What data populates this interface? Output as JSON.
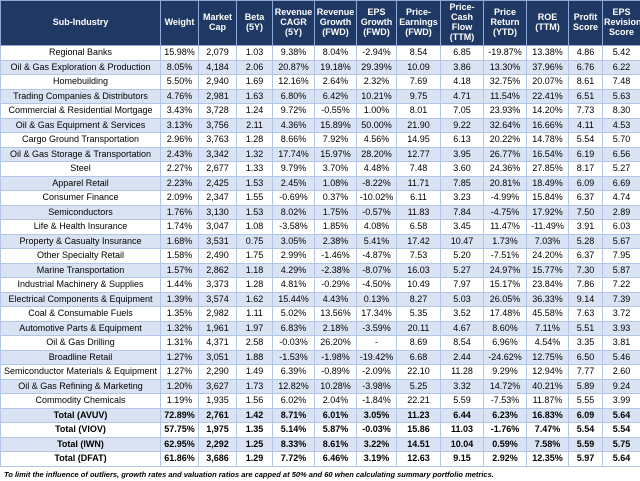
{
  "table": {
    "header": [
      "Sub-Industry",
      "Weight",
      "Market Cap",
      "Beta (5Y)",
      "Revenue CAGR (5Y)",
      "Revenue Growth (FWD)",
      "EPS Growth (FWD)",
      "Price-Earnings (FWD)",
      "Price-Cash Flow (TTM)",
      "Price Return (YTD)",
      "ROE (TTM)",
      "Profit Score",
      "EPS Revision Score"
    ],
    "rows": [
      [
        "Regional Banks",
        "15.98%",
        "2,079",
        "1.03",
        "9.38%",
        "8.04%",
        "-2.94%",
        "8.54",
        "6.85",
        "-19.87%",
        "13.38%",
        "4.86",
        "5.42"
      ],
      [
        "Oil & Gas Exploration & Production",
        "8.05%",
        "4,184",
        "2.06",
        "20.87%",
        "19.18%",
        "29.39%",
        "10.09",
        "3.86",
        "13.30%",
        "37.96%",
        "6.76",
        "6.22"
      ],
      [
        "Homebuilding",
        "5.50%",
        "2,940",
        "1.69",
        "12.16%",
        "2.64%",
        "2.32%",
        "7.69",
        "4.18",
        "32.75%",
        "20.07%",
        "8.61",
        "7.48"
      ],
      [
        "Trading Companies & Distributors",
        "4.76%",
        "2,981",
        "1.63",
        "6.80%",
        "6.42%",
        "10.21%",
        "9.75",
        "4.71",
        "11.54%",
        "22.41%",
        "6.51",
        "5.63"
      ],
      [
        "Commercial & Residential Mortgage",
        "3.43%",
        "3,728",
        "1.24",
        "9.72%",
        "-0.55%",
        "1.00%",
        "8.01",
        "7.05",
        "23.93%",
        "14.20%",
        "7.73",
        "8.30"
      ],
      [
        "Oil & Gas Equipment & Services",
        "3.13%",
        "3,756",
        "2.11",
        "4.36%",
        "15.89%",
        "50.00%",
        "21.90",
        "9.22",
        "32.64%",
        "16.66%",
        "4.11",
        "4.53"
      ],
      [
        "Cargo Ground Transportation",
        "2.96%",
        "3,763",
        "1.28",
        "8.66%",
        "7.92%",
        "4.56%",
        "14.95",
        "6.13",
        "20.22%",
        "14.78%",
        "5.54",
        "5.70"
      ],
      [
        "Oil & Gas Storage & Transportation",
        "2.43%",
        "3,342",
        "1.32",
        "17.74%",
        "15.97%",
        "28.20%",
        "12.77",
        "3.95",
        "26.77%",
        "16.54%",
        "6.19",
        "6.56"
      ],
      [
        "Steel",
        "2.27%",
        "2,677",
        "1.33",
        "9.79%",
        "3.70%",
        "4.48%",
        "7.48",
        "3.60",
        "24.36%",
        "27.85%",
        "8.17",
        "5.27"
      ],
      [
        "Apparel Retail",
        "2.23%",
        "2,425",
        "1.53",
        "2.45%",
        "1.08%",
        "-8.22%",
        "11.71",
        "7.85",
        "20.81%",
        "18.49%",
        "6.09",
        "6.69"
      ],
      [
        "Consumer Finance",
        "2.09%",
        "2,347",
        "1.55",
        "-0.69%",
        "0.37%",
        "-10.02%",
        "6.11",
        "3.23",
        "-4.99%",
        "15.84%",
        "6.37",
        "4.74"
      ],
      [
        "Semiconductors",
        "1.76%",
        "3,130",
        "1.53",
        "8.02%",
        "1.75%",
        "-0.57%",
        "11.83",
        "7.84",
        "-4.75%",
        "17.92%",
        "7.50",
        "2.89"
      ],
      [
        "Life & Health Insurance",
        "1.74%",
        "3,047",
        "1.08",
        "-3.58%",
        "1.85%",
        "4.08%",
        "6.58",
        "3.45",
        "11.47%",
        "-11.49%",
        "3.91",
        "6.03"
      ],
      [
        "Property & Casualty Insurance",
        "1.68%",
        "3,531",
        "0.75",
        "3.05%",
        "2.38%",
        "5.41%",
        "17.42",
        "10.47",
        "1.73%",
        "7.03%",
        "5.28",
        "5.67"
      ],
      [
        "Other Specialty Retail",
        "1.58%",
        "2,490",
        "1.75",
        "2.99%",
        "-1.46%",
        "-4.87%",
        "7.53",
        "5.20",
        "-7.51%",
        "24.20%",
        "6.37",
        "7.95"
      ],
      [
        "Marine Transportation",
        "1.57%",
        "2,862",
        "1.18",
        "4.29%",
        "-2.38%",
        "-8.07%",
        "16.03",
        "5.27",
        "24.97%",
        "15.77%",
        "7.30",
        "5.87"
      ],
      [
        "Industrial Machinery & Supplies",
        "1.44%",
        "3,373",
        "1.28",
        "4.81%",
        "-0.29%",
        "-4.50%",
        "10.49",
        "7.97",
        "15.17%",
        "23.84%",
        "7.86",
        "7.22"
      ],
      [
        "Electrical Components & Equipment",
        "1.39%",
        "3,574",
        "1.62",
        "15.44%",
        "4.43%",
        "0.13%",
        "8.27",
        "5.03",
        "26.05%",
        "36.33%",
        "9.14",
        "7.39"
      ],
      [
        "Coal & Consumable Fuels",
        "1.35%",
        "2,982",
        "1.11",
        "5.02%",
        "13.56%",
        "17.34%",
        "5.35",
        "3.52",
        "17.48%",
        "45.58%",
        "7.63",
        "3.72"
      ],
      [
        "Automotive Parts & Equipment",
        "1.32%",
        "1,961",
        "1.97",
        "6.83%",
        "2.18%",
        "-3.59%",
        "20.11",
        "4.67",
        "8.60%",
        "7.11%",
        "5.51",
        "3.93"
      ],
      [
        "Oil & Gas Drilling",
        "1.31%",
        "4,371",
        "2.58",
        "-0.03%",
        "26.20%",
        "-",
        "8.69",
        "8.54",
        "6.96%",
        "4.54%",
        "3.35",
        "3.81"
      ],
      [
        "Broadline Retail",
        "1.27%",
        "3,051",
        "1.88",
        "-1.53%",
        "-1.98%",
        "-19.42%",
        "6.68",
        "2.44",
        "-24.62%",
        "12.75%",
        "6.50",
        "5.46"
      ],
      [
        "Semiconductor Materials & Equipment",
        "1.27%",
        "2,290",
        "1.49",
        "6.39%",
        "-0.89%",
        "-2.09%",
        "22.10",
        "11.28",
        "9.29%",
        "12.94%",
        "7.77",
        "2.60"
      ],
      [
        "Oil & Gas Refining & Marketing",
        "1.20%",
        "3,627",
        "1.73",
        "12.82%",
        "10.28%",
        "-3.98%",
        "5.25",
        "3.32",
        "14.72%",
        "40.21%",
        "5.89",
        "9.24"
      ],
      [
        "Commodity Chemicals",
        "1.19%",
        "1,935",
        "1.56",
        "6.02%",
        "2.04%",
        "-1.84%",
        "22.21",
        "5.59",
        "-7.53%",
        "11.87%",
        "5.55",
        "3.99"
      ]
    ],
    "totals": [
      [
        "Total (AVUV)",
        "72.89%",
        "2,761",
        "1.42",
        "8.71%",
        "6.01%",
        "3.05%",
        "11.23",
        "6.44",
        "6.23%",
        "16.83%",
        "6.09",
        "5.64"
      ],
      [
        "Total (VIOV)",
        "57.75%",
        "1,975",
        "1.35",
        "5.14%",
        "5.87%",
        "-0.03%",
        "15.86",
        "11.03",
        "-1.76%",
        "7.47%",
        "5.54",
        "5.54"
      ],
      [
        "Total (IWN)",
        "62.95%",
        "2,292",
        "1.25",
        "8.33%",
        "8.61%",
        "3.22%",
        "14.51",
        "10.04",
        "0.59%",
        "7.58%",
        "5.59",
        "5.75"
      ],
      [
        "Total (DFAT)",
        "61.86%",
        "3,686",
        "1.29",
        "7.72%",
        "6.46%",
        "3.19%",
        "12.63",
        "9.15",
        "2.92%",
        "12.35%",
        "5.97",
        "5.64"
      ]
    ]
  },
  "footnote": "To limit the influence of outliers, growth rates and valuation ratios are capped at 50% and 60 when calculating summary portfolio metrics."
}
